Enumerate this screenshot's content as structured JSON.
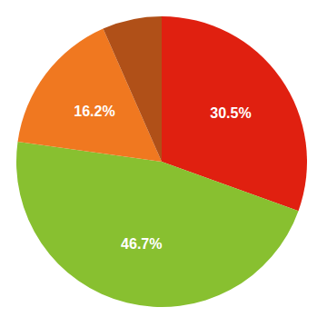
{
  "chart_data": {
    "type": "pie",
    "values": [
      30.5,
      46.7,
      16.2,
      6.6
    ],
    "value_labels": [
      "30.5%",
      "46.7%",
      "16.2%",
      null
    ],
    "colors": [
      "#e02010",
      "#88c030",
      "#f07820",
      "#b05018"
    ],
    "data_labels": true
  }
}
